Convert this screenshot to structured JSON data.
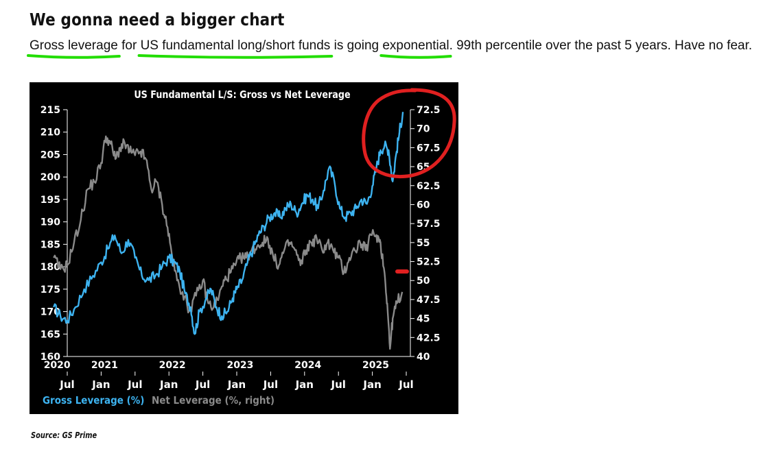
{
  "page": {
    "headline": "We gonna need a bigger chart",
    "description_parts": [
      "Gross leverage",
      " for ",
      "US fundamental long/short funds",
      " is going ",
      "exponential",
      ". 99th percentile over the past 5 years. Have no fear."
    ],
    "source": "Source: GS Prime"
  },
  "colors": {
    "gross": "#3db3f0",
    "net": "#8a8a8a",
    "underline": "#22dd00",
    "circle": "#e02020"
  },
  "chart_data": {
    "type": "line",
    "title": "US Fundamental L/S: Gross vs Net Leverage",
    "left_ticks": [
      160,
      165,
      170,
      175,
      180,
      185,
      190,
      195,
      200,
      205,
      210,
      215
    ],
    "right_ticks": [
      "40",
      "42.5",
      "45",
      "47.5",
      "50",
      "52.5",
      "55",
      "57.5",
      "60",
      "62.5",
      "65",
      "67.5",
      "70",
      "72.5"
    ],
    "right_tick_values": [
      40,
      42.5,
      45,
      47.5,
      50,
      52.5,
      55,
      57.5,
      60,
      62.5,
      65,
      67.5,
      70,
      72.5
    ],
    "year_labels": [
      {
        "label": "2020",
        "date": 2020.35
      },
      {
        "label": "2021",
        "date": 2021.05
      },
      {
        "label": "2022",
        "date": 2022.05
      },
      {
        "label": "2023",
        "date": 2023.05
      },
      {
        "label": "2024",
        "date": 2024.05
      },
      {
        "label": "2025",
        "date": 2025.05
      }
    ],
    "month_labels": [
      {
        "label": "Jul",
        "date": 2020.5
      },
      {
        "label": "Jan",
        "date": 2021.0
      },
      {
        "label": "Jul",
        "date": 2021.5
      },
      {
        "label": "Jan",
        "date": 2022.0
      },
      {
        "label": "Jul",
        "date": 2022.5
      },
      {
        "label": "Jan",
        "date": 2023.0
      },
      {
        "label": "Jul",
        "date": 2023.5
      },
      {
        "label": "Jan",
        "date": 2024.0
      },
      {
        "label": "Jul",
        "date": 2024.5
      },
      {
        "label": "Jan",
        "date": 2025.0
      },
      {
        "label": "Jul",
        "date": 2025.5
      }
    ],
    "x_range": [
      2020.5,
      2025.5
    ],
    "ylim_left": [
      160,
      215
    ],
    "ylim_right": [
      40,
      72.5
    ],
    "legend": [
      {
        "label": "Gross Leverage (%)",
        "color": "#3db3f0"
      },
      {
        "label": "Net Leverage (%, right)",
        "color": "#8a8a8a"
      }
    ],
    "series": [
      {
        "name": "Gross Leverage (%)",
        "axis": "left",
        "points": [
          [
            2020.3,
            171
          ],
          [
            2020.4,
            169
          ],
          [
            2020.5,
            168
          ],
          [
            2020.62,
            171
          ],
          [
            2020.75,
            175
          ],
          [
            2020.88,
            178
          ],
          [
            2021.0,
            181
          ],
          [
            2021.1,
            184
          ],
          [
            2021.2,
            187
          ],
          [
            2021.3,
            183
          ],
          [
            2021.4,
            186
          ],
          [
            2021.5,
            182
          ],
          [
            2021.6,
            178
          ],
          [
            2021.7,
            177
          ],
          [
            2021.8,
            178
          ],
          [
            2021.9,
            180
          ],
          [
            2022.0,
            182
          ],
          [
            2022.08,
            181
          ],
          [
            2022.16,
            179
          ],
          [
            2022.24,
            174
          ],
          [
            2022.32,
            171
          ],
          [
            2022.38,
            165
          ],
          [
            2022.45,
            170
          ],
          [
            2022.55,
            173
          ],
          [
            2022.62,
            175
          ],
          [
            2022.7,
            171
          ],
          [
            2022.78,
            169
          ],
          [
            2022.86,
            170
          ],
          [
            2022.94,
            173
          ],
          [
            2023.0,
            175
          ],
          [
            2023.08,
            177
          ],
          [
            2023.16,
            181
          ],
          [
            2023.24,
            184
          ],
          [
            2023.32,
            187
          ],
          [
            2023.4,
            189
          ],
          [
            2023.48,
            191
          ],
          [
            2023.56,
            192
          ],
          [
            2023.64,
            191
          ],
          [
            2023.72,
            193
          ],
          [
            2023.8,
            194
          ],
          [
            2023.88,
            192
          ],
          [
            2023.96,
            194
          ],
          [
            2024.04,
            196
          ],
          [
            2024.12,
            195
          ],
          [
            2024.2,
            193
          ],
          [
            2024.28,
            197
          ],
          [
            2024.36,
            202
          ],
          [
            2024.44,
            199
          ],
          [
            2024.52,
            193
          ],
          [
            2024.6,
            191
          ],
          [
            2024.68,
            192
          ],
          [
            2024.76,
            193
          ],
          [
            2024.84,
            195
          ],
          [
            2024.92,
            194
          ],
          [
            2025.0,
            198
          ],
          [
            2025.06,
            202
          ],
          [
            2025.12,
            206
          ],
          [
            2025.18,
            207
          ],
          [
            2025.24,
            206
          ],
          [
            2025.3,
            199
          ],
          [
            2025.35,
            205
          ],
          [
            2025.4,
            210
          ],
          [
            2025.45,
            214.5
          ]
        ]
      },
      {
        "name": "Net Leverage (%, right)",
        "axis": "right",
        "points": [
          [
            2020.3,
            53
          ],
          [
            2020.4,
            51.5
          ],
          [
            2020.5,
            52
          ],
          [
            2020.6,
            55
          ],
          [
            2020.7,
            58
          ],
          [
            2020.8,
            62
          ],
          [
            2020.9,
            63
          ],
          [
            2021.0,
            65.5
          ],
          [
            2021.07,
            69
          ],
          [
            2021.14,
            68
          ],
          [
            2021.21,
            66
          ],
          [
            2021.28,
            67.5
          ],
          [
            2021.35,
            68
          ],
          [
            2021.42,
            67
          ],
          [
            2021.5,
            66.5
          ],
          [
            2021.58,
            67
          ],
          [
            2021.66,
            66
          ],
          [
            2021.74,
            62
          ],
          [
            2021.82,
            63
          ],
          [
            2021.9,
            60
          ],
          [
            2021.98,
            57
          ],
          [
            2022.05,
            53
          ],
          [
            2022.12,
            50
          ],
          [
            2022.2,
            48.5
          ],
          [
            2022.3,
            46
          ],
          [
            2022.4,
            48
          ],
          [
            2022.5,
            50
          ],
          [
            2022.58,
            47
          ],
          [
            2022.66,
            46.5
          ],
          [
            2022.74,
            48
          ],
          [
            2022.82,
            50
          ],
          [
            2022.9,
            51
          ],
          [
            2022.98,
            52
          ],
          [
            2023.06,
            53
          ],
          [
            2023.14,
            53
          ],
          [
            2023.22,
            54
          ],
          [
            2023.3,
            54.5
          ],
          [
            2023.38,
            55
          ],
          [
            2023.46,
            55.5
          ],
          [
            2023.54,
            53
          ],
          [
            2023.62,
            52
          ],
          [
            2023.7,
            54
          ],
          [
            2023.78,
            55
          ],
          [
            2023.86,
            54
          ],
          [
            2023.94,
            52
          ],
          [
            2024.02,
            54
          ],
          [
            2024.1,
            55
          ],
          [
            2024.18,
            55.5
          ],
          [
            2024.26,
            54
          ],
          [
            2024.34,
            55
          ],
          [
            2024.42,
            54
          ],
          [
            2024.5,
            53
          ],
          [
            2024.58,
            51
          ],
          [
            2024.66,
            53
          ],
          [
            2024.74,
            54
          ],
          [
            2024.82,
            55
          ],
          [
            2024.9,
            54
          ],
          [
            2024.98,
            56
          ],
          [
            2025.06,
            56
          ],
          [
            2025.12,
            55
          ],
          [
            2025.18,
            51
          ],
          [
            2025.22,
            47
          ],
          [
            2025.26,
            41
          ],
          [
            2025.3,
            45
          ],
          [
            2025.36,
            47
          ],
          [
            2025.44,
            48.5
          ]
        ]
      }
    ]
  }
}
